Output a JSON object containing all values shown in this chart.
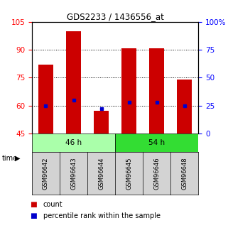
{
  "title": "GDS2233 / 1436556_at",
  "samples": [
    "GSM96642",
    "GSM96643",
    "GSM96644",
    "GSM96645",
    "GSM96646",
    "GSM96648"
  ],
  "count_values": [
    82,
    100,
    57,
    91,
    91,
    74
  ],
  "percentile_values": [
    25,
    30,
    22,
    28,
    28,
    25
  ],
  "ylim_left": [
    45,
    105
  ],
  "yticks_left": [
    45,
    60,
    75,
    90,
    105
  ],
  "ylim_right": [
    0,
    100
  ],
  "yticks_right": [
    0,
    25,
    50,
    75,
    100
  ],
  "ytick_labels_right": [
    "0",
    "25",
    "50",
    "75",
    "100%"
  ],
  "groups": [
    {
      "label": "46 h",
      "indices": [
        0,
        1,
        2
      ],
      "color": "#AAFFAA"
    },
    {
      "label": "54 h",
      "indices": [
        3,
        4,
        5
      ],
      "color": "#33DD33"
    }
  ],
  "bar_color": "#CC0000",
  "dot_color": "#0000CC",
  "bar_width": 0.55,
  "background_color": "#FFFFFF",
  "plot_bg": "#FFFFFF",
  "label_count": "count",
  "label_percentile": "percentile rank within the sample",
  "time_label": "time"
}
